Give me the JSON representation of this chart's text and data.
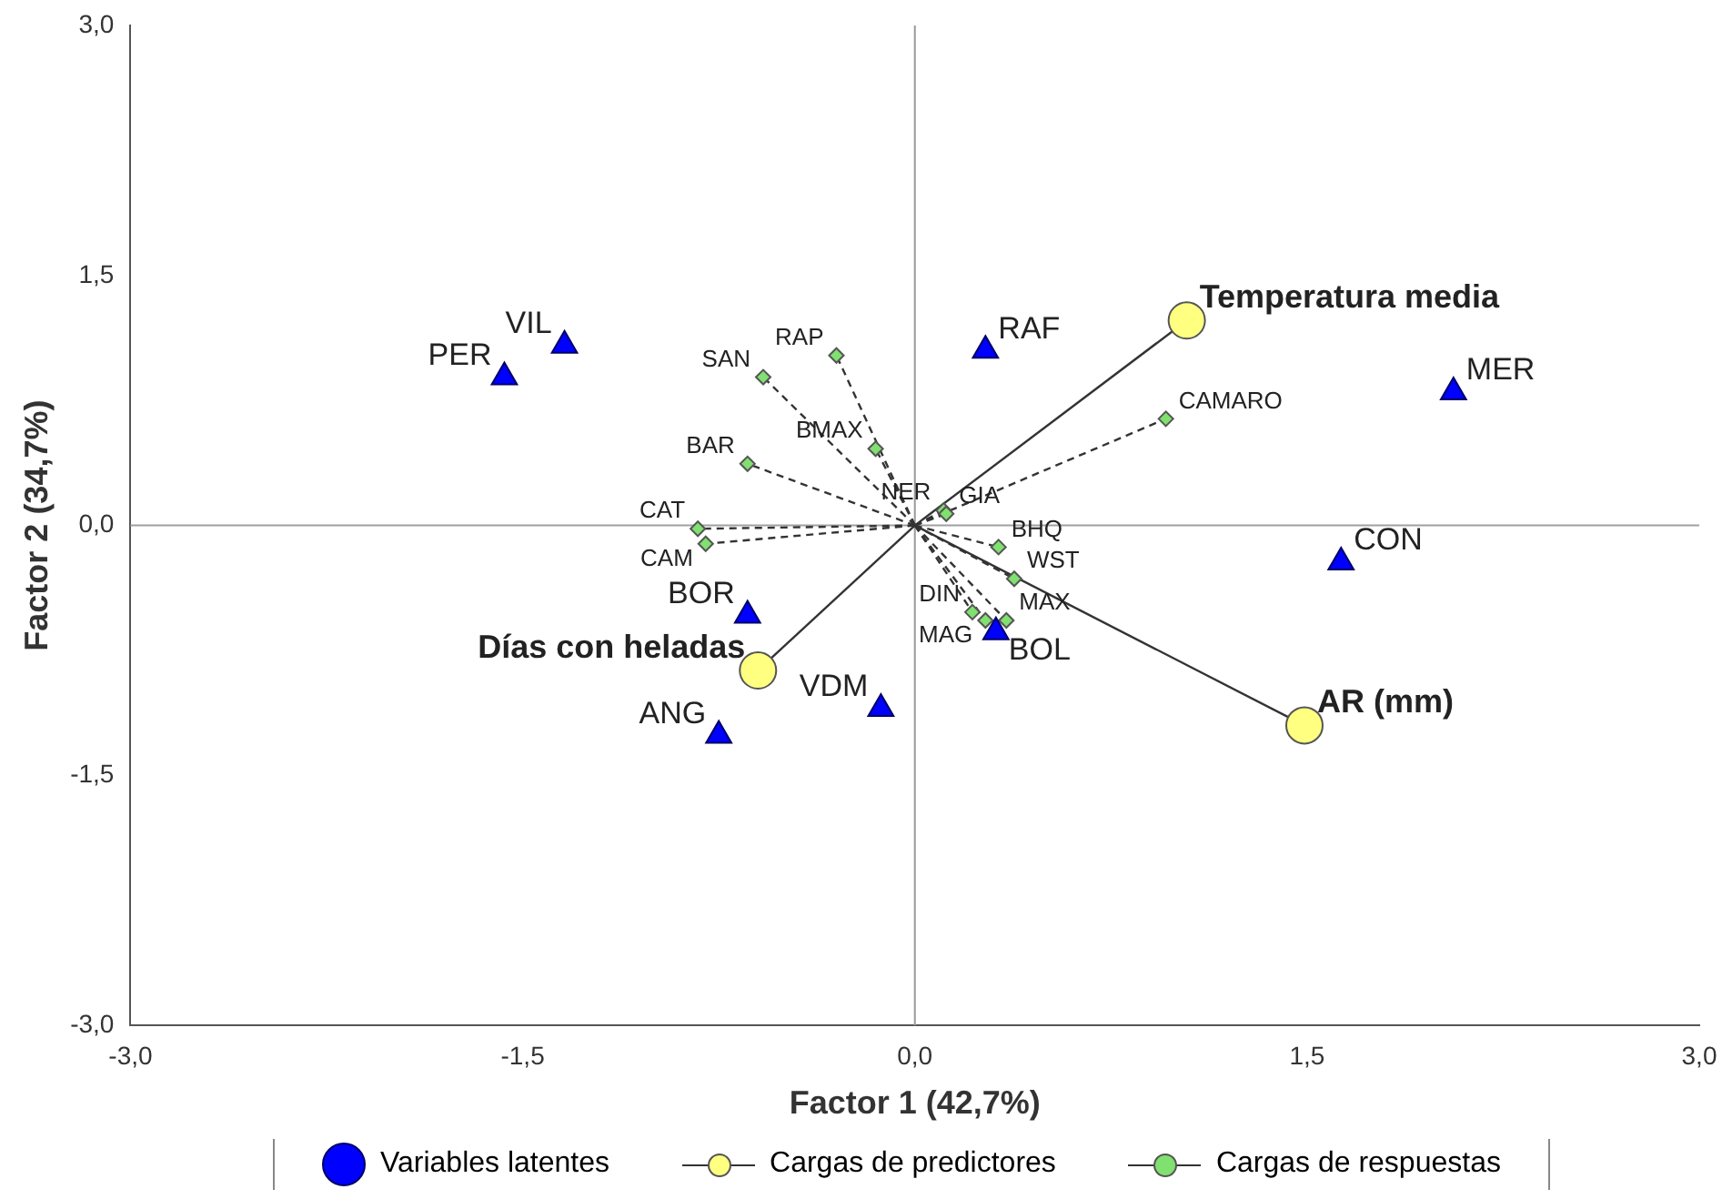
{
  "chart_data": {
    "type": "scatter",
    "xlabel": "Factor 1 (42,7%)",
    "ylabel": "Factor 2 (34,7%)",
    "xlim": [
      -3,
      3
    ],
    "ylim": [
      -3,
      3
    ],
    "xticks": [
      {
        "value": -3,
        "label": "-3,0"
      },
      {
        "value": -1.5,
        "label": "-1,5"
      },
      {
        "value": 0,
        "label": "0,0"
      },
      {
        "value": 1.5,
        "label": "1,5"
      },
      {
        "value": 3,
        "label": "3,0"
      }
    ],
    "yticks": [
      {
        "value": -3,
        "label": "-3,0"
      },
      {
        "value": -1.5,
        "label": "-1,5"
      },
      {
        "value": 0,
        "label": "0,0"
      },
      {
        "value": 1.5,
        "label": "1,5"
      },
      {
        "value": 3,
        "label": "3,0"
      }
    ],
    "ref_lines": [
      {
        "axis": "x",
        "value": 0,
        "color": "#999999"
      },
      {
        "axis": "y",
        "value": 0,
        "color": "#a0a0a0"
      }
    ],
    "legend": "bottom",
    "series": [
      {
        "name": "Variables latentes",
        "color": "#0000ff",
        "marker": "triangle",
        "x": [
          -1.57,
          -1.34,
          0.27,
          2.06,
          1.63,
          -0.64,
          0.31,
          -0.13,
          -0.75
        ],
        "values": [
          0.89,
          1.08,
          1.05,
          0.8,
          -0.22,
          -0.54,
          -0.64,
          -1.1,
          -1.26
        ],
        "value_labels": [
          "PER",
          "VIL",
          "RAF",
          "MER",
          "CON",
          "BOR",
          "BOL",
          "VDM",
          "ANG"
        ]
      },
      {
        "name": "Cargas de predictores",
        "color": "#ffff80",
        "marker": "circle",
        "line_style": "solid",
        "x": [
          1.04,
          1.49,
          -0.6
        ],
        "values": [
          1.23,
          -1.2,
          -0.87
        ],
        "value_labels": [
          "Temperatura media",
          "AR (mm)",
          "Días con heladas"
        ]
      },
      {
        "name": "Cargas de respuestas",
        "color": "#80e070",
        "marker": "diamond",
        "line_style": "dashed",
        "x": [
          0.96,
          -0.58,
          -0.3,
          -0.15,
          -0.64,
          -0.83,
          -0.8,
          0.11,
          0.12,
          0.32,
          0.38,
          0.27,
          0.22,
          0.35
        ],
        "values": [
          0.64,
          0.89,
          1.02,
          0.46,
          0.37,
          -0.02,
          -0.11,
          0.09,
          0.07,
          -0.13,
          -0.32,
          -0.57,
          -0.52,
          -0.57
        ],
        "value_labels": [
          "CAMARO",
          "SAN",
          "RAP",
          "BMAX",
          "BAR",
          "CAT",
          "CAM",
          "NER",
          "GIA",
          "BHQ",
          "WST",
          "MAG",
          "DIN",
          "MAX"
        ]
      }
    ]
  }
}
